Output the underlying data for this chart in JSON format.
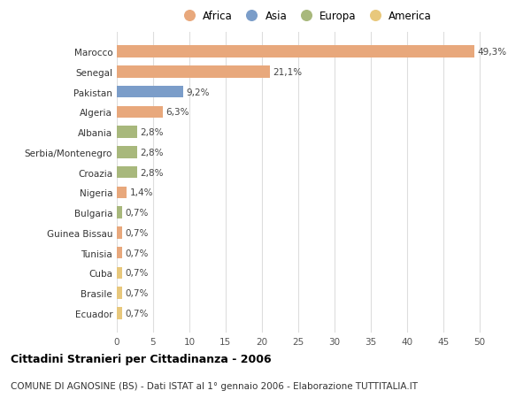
{
  "countries": [
    "Marocco",
    "Senegal",
    "Pakistan",
    "Algeria",
    "Albania",
    "Serbia/Montenegro",
    "Croazia",
    "Nigeria",
    "Bulgaria",
    "Guinea Bissau",
    "Tunisia",
    "Cuba",
    "Brasile",
    "Ecuador"
  ],
  "values": [
    49.3,
    21.1,
    9.2,
    6.3,
    2.8,
    2.8,
    2.8,
    1.4,
    0.7,
    0.7,
    0.7,
    0.7,
    0.7,
    0.7
  ],
  "labels": [
    "49,3%",
    "21,1%",
    "9,2%",
    "6,3%",
    "2,8%",
    "2,8%",
    "2,8%",
    "1,4%",
    "0,7%",
    "0,7%",
    "0,7%",
    "0,7%",
    "0,7%",
    "0,7%"
  ],
  "continents": [
    "Africa",
    "Africa",
    "Asia",
    "Africa",
    "Europa",
    "Europa",
    "Europa",
    "Africa",
    "Europa",
    "Africa",
    "Africa",
    "America",
    "America",
    "America"
  ],
  "continent_colors": {
    "Africa": "#E8A87C",
    "Asia": "#7B9DC9",
    "Europa": "#A8B87C",
    "America": "#E8C87C"
  },
  "legend_items": [
    "Africa",
    "Asia",
    "Europa",
    "America"
  ],
  "legend_colors": [
    "#E8A87C",
    "#7B9DC9",
    "#A8B87C",
    "#E8C87C"
  ],
  "xlim": [
    0,
    52
  ],
  "xticks": [
    0,
    5,
    10,
    15,
    20,
    25,
    30,
    35,
    40,
    45,
    50
  ],
  "title_bold": "Cittadini Stranieri per Cittadinanza - 2006",
  "subtitle": "COMUNE DI AGNOSINE (BS) - Dati ISTAT al 1° gennaio 2006 - Elaborazione TUTTITALIA.IT",
  "bg_color": "#ffffff",
  "grid_color": "#dddddd",
  "bar_height": 0.6,
  "label_fontsize": 7.5,
  "tick_fontsize": 7.5,
  "title_fontsize": 9,
  "subtitle_fontsize": 7.5
}
